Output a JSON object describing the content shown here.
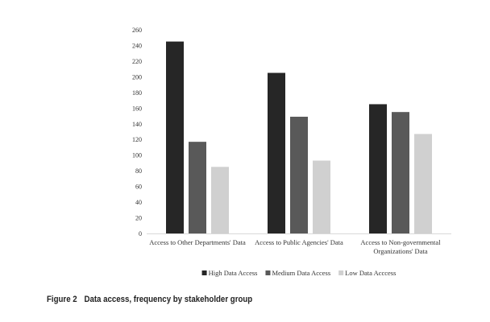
{
  "caption": {
    "figure_number": "Figure 2",
    "text": "Data access, frequency by stakeholder group"
  },
  "chart_data": {
    "type": "bar",
    "title": "",
    "xlabel": "",
    "ylabel": "",
    "ylim": [
      0,
      260
    ],
    "yticks": [
      0,
      20,
      40,
      60,
      80,
      100,
      120,
      140,
      160,
      180,
      200,
      220,
      240,
      260
    ],
    "grid": false,
    "legend_position": "bottom",
    "categories": [
      [
        "Access to Other Departments' Data"
      ],
      [
        "Access to Public Agencies' Data"
      ],
      [
        "Access to Non-governmental",
        "Organizations' Data"
      ]
    ],
    "series": [
      {
        "name": "High Data Access",
        "color": "#262626",
        "values": [
          245,
          205,
          165
        ]
      },
      {
        "name": "Medium Data Access",
        "color": "#595959",
        "values": [
          117,
          149,
          155
        ]
      },
      {
        "name": "Low Data Acccess",
        "color": "#d0d0d0",
        "values": [
          85,
          93,
          127
        ]
      }
    ]
  }
}
